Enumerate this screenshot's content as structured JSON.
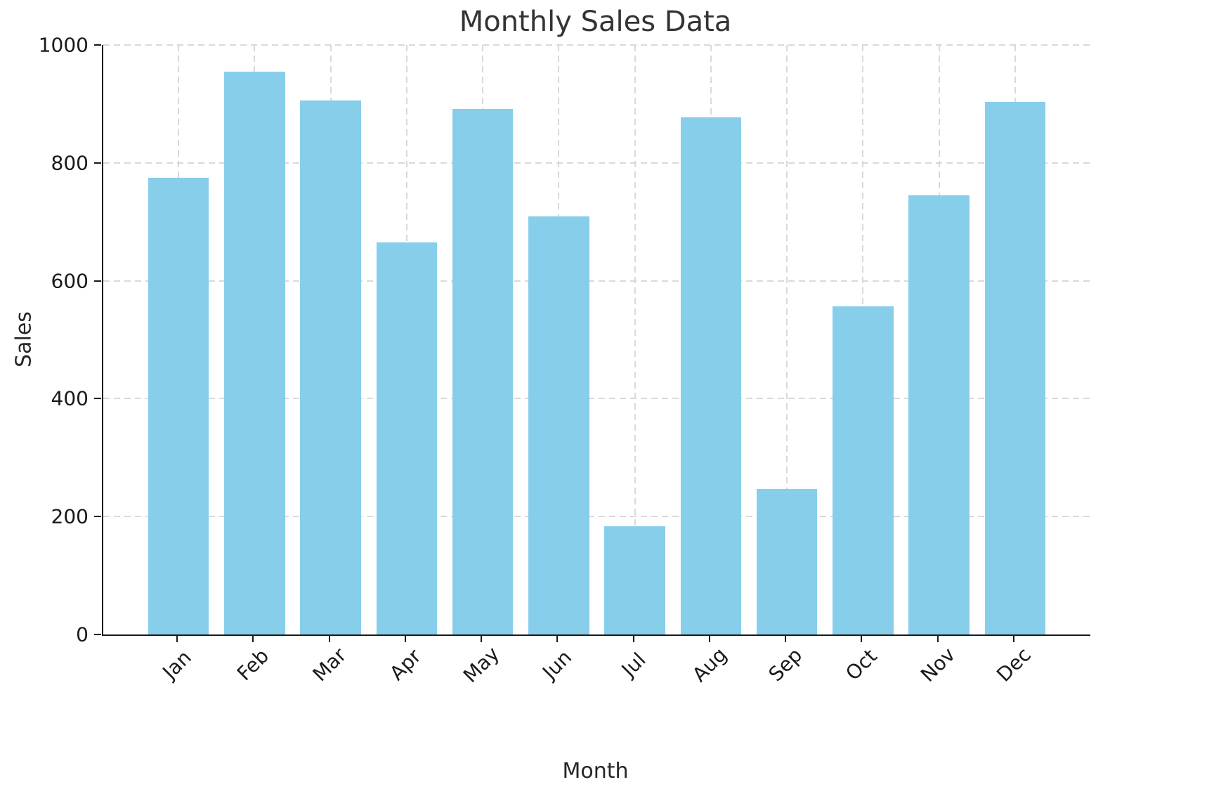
{
  "chart_data": {
    "type": "bar",
    "title": "Monthly Sales Data",
    "xlabel": "Month",
    "ylabel": "Sales",
    "categories": [
      "Jan",
      "Feb",
      "Mar",
      "Apr",
      "May",
      "Jun",
      "Jul",
      "Aug",
      "Sep",
      "Oct",
      "Nov",
      "Dec"
    ],
    "values": [
      775,
      955,
      906,
      665,
      891,
      709,
      183,
      877,
      247,
      557,
      745,
      903
    ],
    "ylim": [
      0,
      1000
    ],
    "yticks": [
      0,
      200,
      400,
      600,
      800,
      1000
    ],
    "bar_color": "#87CEEB",
    "grid": {
      "visible": true,
      "style": "dashed",
      "color": "#d9d9d9",
      "axes": "both"
    },
    "background": "#ffffff",
    "legend": null
  }
}
